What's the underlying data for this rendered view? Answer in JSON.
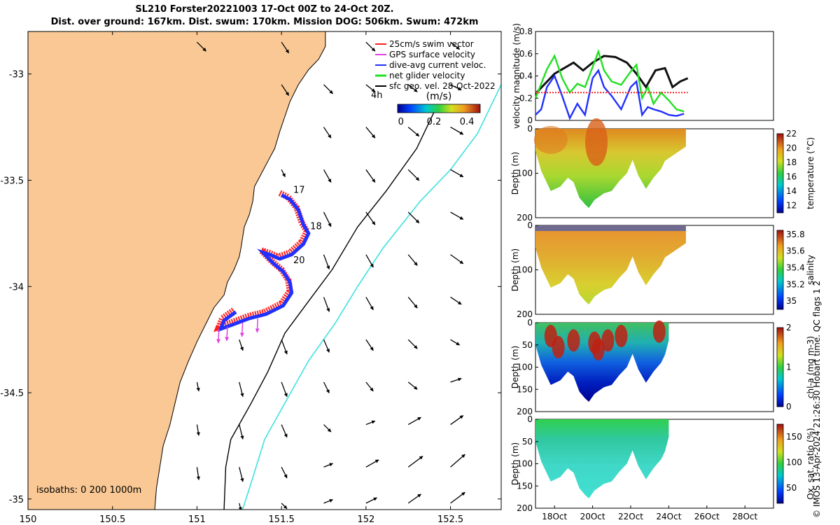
{
  "title_line1": "SL210 Forster20221003 17-Oct 00Z to 24-Oct 20Z.",
  "title_line2": "Dist. over ground: 167km. Dist. swum: 170km. Mission DOG: 506km. Swum: 472km",
  "copyright": "© IMOS 13-Apr-2024 21:26:30 Hobart time. QC flags 1  2",
  "colors": {
    "land": "#f9c894",
    "swim_vector": "#ff2020",
    "gps_velocity": "#e040e0",
    "dive_avg": "#2030ff",
    "net_glider": "#20e020",
    "geo_vel": "#000000",
    "isobath_200": "#000000",
    "isobath_1000": "#40e0e0",
    "mag_black": "#111111",
    "mag_red": "#ff2020"
  },
  "chart_data": [
    {
      "type": "map",
      "xlim": [
        150,
        152.8
      ],
      "ylim": [
        -35.05,
        -32.8
      ],
      "x_ticks": [
        "150",
        "150.5",
        "151",
        "151.5",
        "152",
        "152.5"
      ],
      "x_tick_values": [
        150,
        150.5,
        151,
        151.5,
        152,
        152.5
      ],
      "y_ticks": [
        "-33",
        "-33.5",
        "-34",
        "-34.5",
        "-35"
      ],
      "y_tick_values": [
        -33,
        -33.5,
        -34,
        -34.5,
        -35
      ],
      "legend": {
        "placement": "top-right",
        "entries": [
          {
            "label": "25cm/s swim vector",
            "color_key": "swim_vector"
          },
          {
            "label": "GPS surface velocity",
            "color_key": "gps_velocity"
          },
          {
            "label": "dive-avg current veloc.",
            "color_key": "dive_avg"
          },
          {
            "label": "net glider velocity",
            "color_key": "net_glider"
          },
          {
            "label": "sfc geo. vel. 28-Oct-2022",
            "color_key": "geo_vel"
          }
        ]
      },
      "speed_label": "4h",
      "colorbar": {
        "label": "(m/s)",
        "ticks": [
          "0",
          "0.2",
          "0.4"
        ],
        "tick_values": [
          0,
          0.2,
          0.4
        ],
        "range": [
          -0.02,
          0.48
        ]
      },
      "isobath_note": "isobaths: 0   200  1000m",
      "day_labels": [
        {
          "text": "17",
          "lon": 151.57,
          "lat": -33.56
        },
        {
          "text": "18",
          "lon": 151.67,
          "lat": -33.73
        },
        {
          "text": "20",
          "lon": 151.57,
          "lat": -33.89
        }
      ],
      "coastline": [
        [
          151.76,
          -32.8
        ],
        [
          151.76,
          -32.87
        ],
        [
          151.72,
          -32.93
        ],
        [
          151.66,
          -32.98
        ],
        [
          151.6,
          -33.05
        ],
        [
          151.55,
          -33.13
        ],
        [
          151.52,
          -33.2
        ],
        [
          151.49,
          -33.27
        ],
        [
          151.46,
          -33.35
        ],
        [
          151.42,
          -33.41
        ],
        [
          151.38,
          -33.47
        ],
        [
          151.34,
          -33.53
        ],
        [
          151.33,
          -33.6
        ],
        [
          151.31,
          -33.66
        ],
        [
          151.28,
          -33.72
        ],
        [
          151.27,
          -33.77
        ],
        [
          151.26,
          -33.82
        ],
        [
          151.25,
          -33.86
        ],
        [
          151.22,
          -33.92
        ],
        [
          151.18,
          -33.98
        ],
        [
          151.16,
          -34.04
        ],
        [
          151.1,
          -34.1
        ],
        [
          151.05,
          -34.18
        ],
        [
          151.0,
          -34.26
        ],
        [
          150.95,
          -34.35
        ],
        [
          150.9,
          -34.45
        ],
        [
          150.87,
          -34.55
        ],
        [
          150.84,
          -34.65
        ],
        [
          150.8,
          -34.75
        ],
        [
          150.78,
          -34.85
        ],
        [
          150.76,
          -34.95
        ],
        [
          150.75,
          -35.05
        ]
      ],
      "isobath_200": [
        [
          152.42,
          -33.15
        ],
        [
          152.3,
          -33.35
        ],
        [
          152.12,
          -33.55
        ],
        [
          151.95,
          -33.72
        ],
        [
          151.8,
          -33.92
        ],
        [
          151.65,
          -34.08
        ],
        [
          151.52,
          -34.22
        ],
        [
          151.42,
          -34.4
        ],
        [
          151.32,
          -34.55
        ],
        [
          151.2,
          -34.72
        ],
        [
          151.17,
          -34.85
        ],
        [
          151.16,
          -35.05
        ]
      ],
      "isobath_1000": [
        [
          152.8,
          -33.05
        ],
        [
          152.66,
          -33.28
        ],
        [
          152.5,
          -33.45
        ],
        [
          152.32,
          -33.6
        ],
        [
          152.1,
          -33.82
        ],
        [
          151.95,
          -34.0
        ],
        [
          151.82,
          -34.17
        ],
        [
          151.66,
          -34.35
        ],
        [
          151.54,
          -34.52
        ],
        [
          151.4,
          -34.72
        ],
        [
          151.33,
          -34.9
        ],
        [
          151.27,
          -35.05
        ]
      ],
      "glider_track": [
        [
          151.49,
          -33.56
        ],
        [
          151.54,
          -33.58
        ],
        [
          151.59,
          -33.63
        ],
        [
          151.62,
          -33.7
        ],
        [
          151.65,
          -33.74
        ],
        [
          151.62,
          -33.79
        ],
        [
          151.55,
          -33.84
        ],
        [
          151.48,
          -33.86
        ],
        [
          151.42,
          -33.84
        ],
        [
          151.38,
          -33.83
        ],
        [
          151.44,
          -33.88
        ],
        [
          151.5,
          -33.92
        ],
        [
          151.54,
          -33.97
        ],
        [
          151.55,
          -34.02
        ],
        [
          151.5,
          -34.08
        ],
        [
          151.4,
          -34.12
        ],
        [
          151.3,
          -34.14
        ],
        [
          151.2,
          -34.17
        ],
        [
          151.13,
          -34.19
        ],
        [
          151.15,
          -34.15
        ],
        [
          151.22,
          -34.11
        ]
      ],
      "geo_vectors": [
        {
          "lon": 151.0,
          "lat": -32.85,
          "u": 0.05,
          "v": -0.05
        },
        {
          "lon": 151.5,
          "lat": -32.85,
          "u": 0.04,
          "v": -0.06
        },
        {
          "lon": 152.0,
          "lat": -32.85,
          "u": 0.05,
          "v": -0.05
        },
        {
          "lon": 152.5,
          "lat": -32.85,
          "u": 0.05,
          "v": -0.04
        },
        {
          "lon": 151.5,
          "lat": -33.05,
          "u": 0.04,
          "v": -0.06
        },
        {
          "lon": 151.75,
          "lat": -33.05,
          "u": 0.05,
          "v": -0.05
        },
        {
          "lon": 152.0,
          "lat": -33.05,
          "u": 0.05,
          "v": -0.04
        },
        {
          "lon": 152.25,
          "lat": -33.05,
          "u": 0.05,
          "v": -0.04
        },
        {
          "lon": 152.5,
          "lat": -33.05,
          "u": 0.06,
          "v": -0.03
        },
        {
          "lon": 151.75,
          "lat": -33.25,
          "u": 0.04,
          "v": -0.06
        },
        {
          "lon": 152.0,
          "lat": -33.25,
          "u": 0.05,
          "v": -0.06
        },
        {
          "lon": 152.25,
          "lat": -33.25,
          "u": 0.06,
          "v": -0.05
        },
        {
          "lon": 152.5,
          "lat": -33.25,
          "u": 0.07,
          "v": -0.04
        },
        {
          "lon": 151.5,
          "lat": -33.45,
          "u": 0.02,
          "v": -0.04
        },
        {
          "lon": 151.75,
          "lat": -33.45,
          "u": 0.04,
          "v": -0.07
        },
        {
          "lon": 152.0,
          "lat": -33.45,
          "u": 0.05,
          "v": -0.07
        },
        {
          "lon": 152.25,
          "lat": -33.45,
          "u": 0.06,
          "v": -0.06
        },
        {
          "lon": 152.5,
          "lat": -33.45,
          "u": 0.07,
          "v": -0.04
        },
        {
          "lon": 151.75,
          "lat": -33.65,
          "u": 0.04,
          "v": -0.08
        },
        {
          "lon": 152.0,
          "lat": -33.65,
          "u": 0.05,
          "v": -0.07
        },
        {
          "lon": 152.25,
          "lat": -33.65,
          "u": 0.06,
          "v": -0.06
        },
        {
          "lon": 152.5,
          "lat": -33.65,
          "u": 0.07,
          "v": -0.04
        },
        {
          "lon": 151.75,
          "lat": -33.85,
          "u": 0.03,
          "v": -0.08
        },
        {
          "lon": 152.0,
          "lat": -33.85,
          "u": 0.04,
          "v": -0.07
        },
        {
          "lon": 152.25,
          "lat": -33.85,
          "u": 0.05,
          "v": -0.06
        },
        {
          "lon": 152.5,
          "lat": -33.85,
          "u": 0.07,
          "v": -0.05
        },
        {
          "lon": 151.75,
          "lat": -34.05,
          "u": 0.03,
          "v": -0.08
        },
        {
          "lon": 152.0,
          "lat": -34.05,
          "u": 0.04,
          "v": -0.07
        },
        {
          "lon": 152.25,
          "lat": -34.05,
          "u": 0.05,
          "v": -0.06
        },
        {
          "lon": 152.5,
          "lat": -34.05,
          "u": 0.06,
          "v": -0.04
        },
        {
          "lon": 151.25,
          "lat": -34.25,
          "u": 0.02,
          "v": -0.06
        },
        {
          "lon": 151.5,
          "lat": -34.25,
          "u": 0.03,
          "v": -0.08
        },
        {
          "lon": 151.75,
          "lat": -34.25,
          "u": 0.03,
          "v": -0.07
        },
        {
          "lon": 152.0,
          "lat": -34.25,
          "u": 0.04,
          "v": -0.06
        },
        {
          "lon": 152.25,
          "lat": -34.25,
          "u": 0.05,
          "v": -0.05
        },
        {
          "lon": 152.5,
          "lat": -34.25,
          "u": 0.05,
          "v": -0.03
        },
        {
          "lon": 151.0,
          "lat": -34.45,
          "u": 0.01,
          "v": -0.05
        },
        {
          "lon": 151.25,
          "lat": -34.45,
          "u": 0.02,
          "v": -0.08
        },
        {
          "lon": 151.5,
          "lat": -34.45,
          "u": 0.03,
          "v": -0.08
        },
        {
          "lon": 151.75,
          "lat": -34.45,
          "u": 0.03,
          "v": -0.06
        },
        {
          "lon": 152.0,
          "lat": -34.45,
          "u": 0.04,
          "v": -0.05
        },
        {
          "lon": 152.25,
          "lat": -34.45,
          "u": 0.05,
          "v": -0.04
        },
        {
          "lon": 152.5,
          "lat": -34.45,
          "u": 0.06,
          "v": 0.02
        },
        {
          "lon": 151.0,
          "lat": -34.65,
          "u": 0.01,
          "v": -0.06
        },
        {
          "lon": 151.25,
          "lat": -34.65,
          "u": 0.02,
          "v": -0.08
        },
        {
          "lon": 151.5,
          "lat": -34.65,
          "u": 0.03,
          "v": -0.07
        },
        {
          "lon": 151.75,
          "lat": -34.65,
          "u": 0.04,
          "v": -0.04
        },
        {
          "lon": 152.0,
          "lat": -34.65,
          "u": 0.05,
          "v": 0.02
        },
        {
          "lon": 152.25,
          "lat": -34.65,
          "u": 0.07,
          "v": 0.04
        },
        {
          "lon": 152.5,
          "lat": -34.65,
          "u": 0.07,
          "v": 0.05
        },
        {
          "lon": 151.0,
          "lat": -34.85,
          "u": 0.01,
          "v": -0.07
        },
        {
          "lon": 151.25,
          "lat": -34.85,
          "u": 0.02,
          "v": -0.08
        },
        {
          "lon": 151.5,
          "lat": -34.85,
          "u": 0.03,
          "v": -0.06
        },
        {
          "lon": 151.75,
          "lat": -34.85,
          "u": 0.05,
          "v": 0.02
        },
        {
          "lon": 152.0,
          "lat": -34.85,
          "u": 0.07,
          "v": 0.04
        },
        {
          "lon": 152.25,
          "lat": -34.85,
          "u": 0.08,
          "v": 0.06
        },
        {
          "lon": 152.5,
          "lat": -34.85,
          "u": 0.08,
          "v": 0.07
        },
        {
          "lon": 151.25,
          "lat": -35.02,
          "u": 0.01,
          "v": -0.04
        },
        {
          "lon": 151.5,
          "lat": -35.02,
          "u": 0.03,
          "v": -0.03
        },
        {
          "lon": 151.75,
          "lat": -35.02,
          "u": 0.05,
          "v": 0.02
        },
        {
          "lon": 152.0,
          "lat": -35.02,
          "u": 0.06,
          "v": 0.03
        },
        {
          "lon": 152.25,
          "lat": -35.02,
          "u": 0.07,
          "v": 0.05
        },
        {
          "lon": 152.5,
          "lat": -35.02,
          "u": 0.08,
          "v": 0.06
        }
      ]
    },
    {
      "type": "line",
      "ylabel": "velocity magnitude (m/s)",
      "ylim": [
        0,
        0.8
      ],
      "y_ticks": [
        "0",
        "0.2",
        "0.4",
        "0.6",
        "0.8"
      ],
      "y_tick_values": [
        0,
        0.2,
        0.4,
        0.6,
        0.8
      ],
      "xlim_days": [
        17,
        29.5
      ],
      "series": [
        {
          "color_key": "mag_black",
          "x": [
            17.0,
            18.0,
            19.0,
            19.5,
            20.0,
            20.6,
            21.2,
            21.8,
            22.3,
            22.8,
            23.3,
            23.8,
            24.2,
            24.6,
            25.0
          ],
          "y": [
            0.24,
            0.42,
            0.52,
            0.45,
            0.52,
            0.58,
            0.57,
            0.52,
            0.42,
            0.3,
            0.45,
            0.47,
            0.3,
            0.35,
            0.38
          ]
        },
        {
          "color_key": "net_glider",
          "x": [
            17.0,
            17.3,
            17.6,
            18.0,
            18.4,
            18.8,
            19.2,
            19.6,
            20.0,
            20.3,
            20.6,
            21.0,
            21.5,
            22.0,
            22.3,
            22.6,
            22.9,
            23.2,
            23.6,
            24.0,
            24.4,
            24.8
          ],
          "y": [
            0.2,
            0.33,
            0.46,
            0.58,
            0.38,
            0.25,
            0.33,
            0.3,
            0.48,
            0.62,
            0.45,
            0.35,
            0.32,
            0.44,
            0.5,
            0.2,
            0.3,
            0.15,
            0.25,
            0.18,
            0.1,
            0.08
          ]
        },
        {
          "color_key": "dive_avg",
          "x": [
            17.0,
            17.3,
            17.6,
            18.0,
            18.4,
            18.8,
            19.2,
            19.6,
            20.0,
            20.3,
            20.6,
            21.0,
            21.5,
            22.0,
            22.3,
            22.6,
            22.9,
            23.2,
            23.6,
            24.0,
            24.4,
            24.8
          ],
          "y": [
            0.05,
            0.1,
            0.3,
            0.4,
            0.22,
            0.02,
            0.15,
            0.05,
            0.38,
            0.45,
            0.3,
            0.22,
            0.1,
            0.3,
            0.35,
            0.05,
            0.12,
            0.1,
            0.08,
            0.05,
            0.04,
            0.06
          ]
        },
        {
          "color_key": "mag_red",
          "dashed": true,
          "x": [
            17.0,
            25.0
          ],
          "y": [
            0.25,
            0.25
          ]
        }
      ]
    },
    {
      "type": "heatmap",
      "ylabel": "Depth (m)",
      "clabel": "temperature (°C)",
      "ylim": [
        0,
        200
      ],
      "y_ticks": [
        "0",
        "100",
        "200"
      ],
      "c_ticks": [
        "12",
        "14",
        "16",
        "18",
        "20",
        "22"
      ],
      "c_tick_values": [
        12,
        14,
        16,
        18,
        20,
        22
      ],
      "crange": [
        11,
        22
      ]
    },
    {
      "type": "heatmap",
      "ylabel": "Depth (m)",
      "clabel": "salinity",
      "ylim": [
        0,
        200
      ],
      "y_ticks": [
        "0",
        "100",
        "200"
      ],
      "c_ticks": [
        "35",
        "35.2",
        "35.4",
        "35.6",
        "35.8"
      ],
      "c_tick_values": [
        35,
        35.2,
        35.4,
        35.6,
        35.8
      ],
      "crange": [
        34.9,
        35.85
      ]
    },
    {
      "type": "heatmap",
      "ylabel": "Depth (m)",
      "clabel": "chl-a (mg m-3)",
      "ylim": [
        0,
        200
      ],
      "y_ticks": [
        "0",
        "50",
        "100",
        "150",
        "200"
      ],
      "c_ticks": [
        "0",
        "1",
        "2"
      ],
      "c_tick_values": [
        0,
        1,
        2
      ],
      "crange": [
        0,
        2
      ]
    },
    {
      "type": "heatmap",
      "ylabel": "Depth (m)",
      "clabel": "Ox. sat. ratio (%)",
      "ylim": [
        0,
        200
      ],
      "y_ticks": [
        "0",
        "50",
        "100",
        "150",
        "200"
      ],
      "x_ticks": [
        "18Oct",
        "20Oct",
        "22Oct",
        "24Oct",
        "26Oct",
        "28Oct"
      ],
      "x_tick_values": [
        18,
        20,
        22,
        24,
        26,
        28
      ],
      "xlim_days": [
        17,
        29.5
      ],
      "c_ticks": [
        "50",
        "100",
        "150"
      ],
      "c_tick_values": [
        50,
        100,
        150
      ],
      "crange": [
        20,
        175
      ]
    }
  ]
}
